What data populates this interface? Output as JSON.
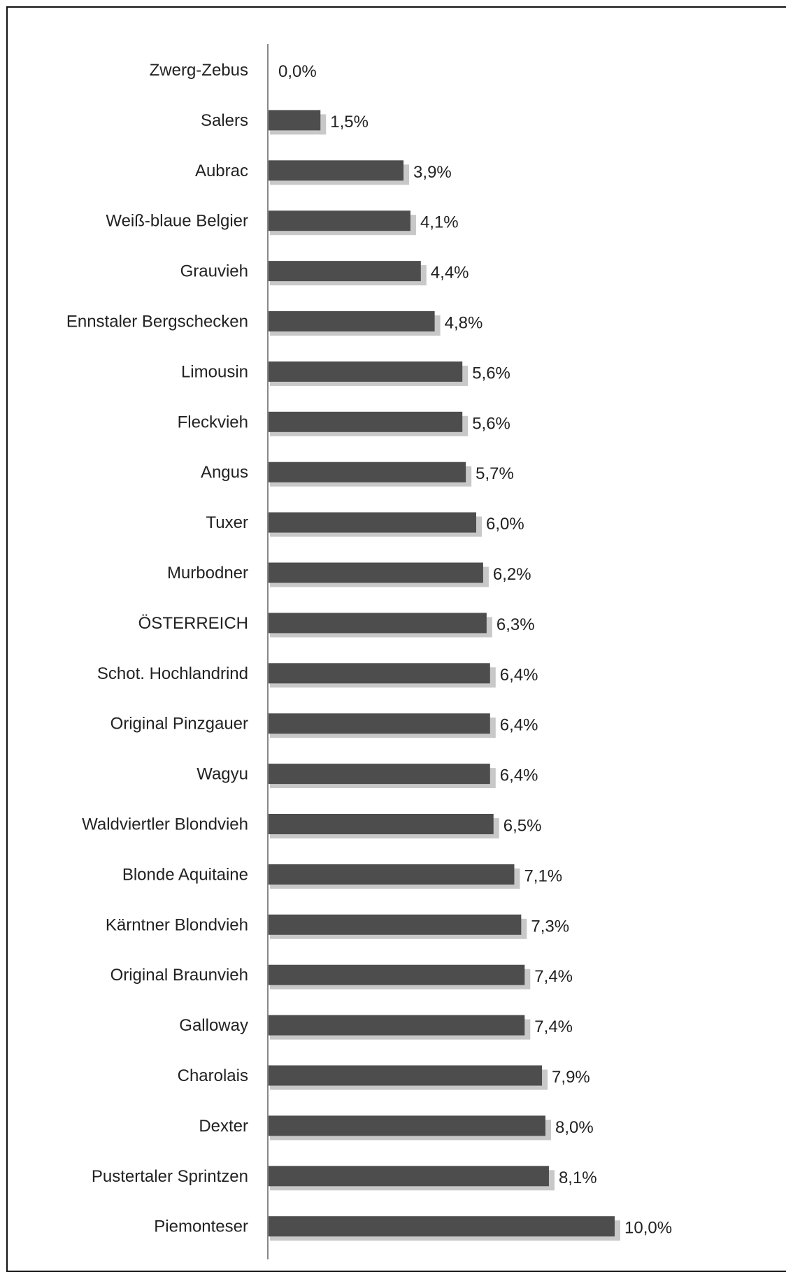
{
  "chart_data": {
    "type": "bar",
    "orientation": "horizontal",
    "categories": [
      "Zwerg-Zebus",
      "Salers",
      "Aubrac",
      "Weiß-blaue Belgier",
      "Grauvieh",
      "Ennstaler Bergschecken",
      "Limousin",
      "Fleckvieh",
      "Angus",
      "Tuxer",
      "Murbodner",
      "ÖSTERREICH",
      "Schot. Hochlandrind",
      "Original Pinzgauer",
      "Wagyu",
      "Waldviertler Blondvieh",
      "Blonde Aquitaine",
      "Kärntner Blondvieh",
      "Original Braunvieh",
      "Galloway",
      "Charolais",
      "Dexter",
      "Pustertaler Sprintzen",
      "Piemonteser"
    ],
    "values": [
      0.0,
      1.5,
      3.9,
      4.1,
      4.4,
      4.8,
      5.6,
      5.6,
      5.7,
      6.0,
      6.2,
      6.3,
      6.4,
      6.4,
      6.4,
      6.5,
      7.1,
      7.3,
      7.4,
      7.4,
      7.9,
      8.0,
      8.1,
      10.0
    ],
    "value_labels": [
      "0,0%",
      "1,5%",
      "3,9%",
      "4,1%",
      "4,4%",
      "4,8%",
      "5,6%",
      "5,6%",
      "5,7%",
      "6,0%",
      "6,2%",
      "6,3%",
      "6,4%",
      "6,4%",
      "6,4%",
      "6,5%",
      "7,1%",
      "7,3%",
      "7,4%",
      "7,4%",
      "7,9%",
      "8,0%",
      "8,1%",
      "10,0%"
    ],
    "xlim": [
      0,
      10
    ],
    "grid": false,
    "legend": "none",
    "colors": {
      "bar": "#4d4d4d",
      "shadow": "#c8c8c8",
      "axis": "#888888",
      "text": "#222222"
    }
  }
}
